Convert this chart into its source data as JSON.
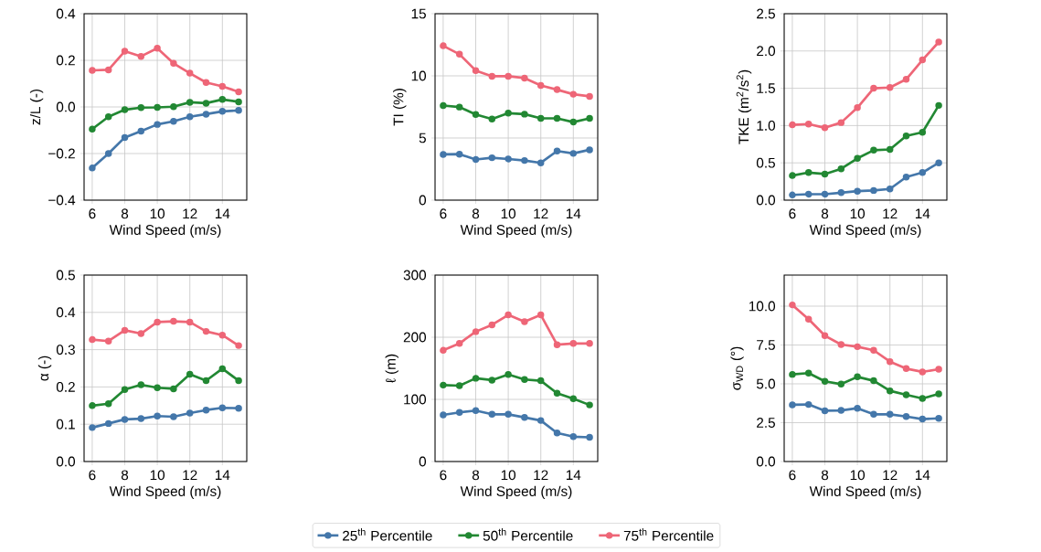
{
  "chart_data": [
    {
      "type": "line",
      "x": [
        6,
        7,
        8,
        9,
        10,
        11,
        12,
        13,
        14,
        15
      ],
      "xlabel": "Wind Speed (m/s)",
      "ylabel": "z/L (-)",
      "xlim": [
        5.5,
        15.5
      ],
      "xticks": [
        6,
        8,
        10,
        12,
        14
      ],
      "ylim": [
        -0.4,
        0.4
      ],
      "yticks": [
        {
          "value": -0.4,
          "label": "−0.4"
        },
        {
          "value": -0.2,
          "label": "−0.2"
        },
        {
          "value": 0,
          "label": "0.0"
        },
        0.2,
        0.4
      ],
      "grid": true,
      "marker": "circle",
      "series": [
        {
          "color": "#4477aa",
          "values": [
            -0.262,
            -0.2,
            -0.131,
            -0.104,
            -0.075,
            -0.062,
            -0.042,
            -0.031,
            -0.019,
            -0.015
          ]
        },
        {
          "color": "#228833",
          "values": [
            -0.095,
            -0.042,
            -0.012,
            -0.003,
            -0.002,
            0.001,
            0.02,
            0.016,
            0.032,
            0.022
          ]
        },
        {
          "color": "#ee6677",
          "values": [
            0.157,
            0.159,
            0.239,
            0.217,
            0.252,
            0.187,
            0.145,
            0.105,
            0.088,
            0.065
          ]
        }
      ]
    },
    {
      "type": "line",
      "x": [
        6,
        7,
        8,
        9,
        10,
        11,
        12,
        13,
        14,
        15
      ],
      "xlabel": "Wind Speed (m/s)",
      "ylabel": "TI (%)",
      "xlim": [
        5.5,
        15.5
      ],
      "xticks": [
        6,
        8,
        10,
        12,
        14
      ],
      "ylim": [
        0,
        15
      ],
      "yticks": [
        0,
        5,
        10,
        15
      ],
      "grid": true,
      "marker": "circle",
      "series": [
        {
          "color": "#4477aa",
          "values": [
            3.68,
            3.7,
            3.27,
            3.41,
            3.31,
            3.19,
            3.0,
            3.95,
            3.76,
            4.05
          ]
        },
        {
          "color": "#228833",
          "values": [
            7.61,
            7.49,
            6.9,
            6.53,
            7.0,
            6.92,
            6.58,
            6.58,
            6.28,
            6.58
          ]
        },
        {
          "color": "#ee6677",
          "values": [
            12.42,
            11.74,
            10.43,
            9.97,
            9.97,
            9.82,
            9.23,
            8.89,
            8.52,
            8.35
          ]
        }
      ]
    },
    {
      "type": "line",
      "x": [
        6,
        7,
        8,
        9,
        10,
        11,
        12,
        13,
        14,
        15
      ],
      "xlabel": "Wind Speed (m/s)",
      "ylabel": "TKE (m$^{2}$/s$^{2}$)",
      "xlim": [
        5.5,
        15.5
      ],
      "xticks": [
        6,
        8,
        10,
        12,
        14
      ],
      "ylim": [
        0,
        2.5
      ],
      "yticks": [
        {
          "value": 0,
          "label": "0.0"
        },
        0.5,
        {
          "value": 1,
          "label": "1.0"
        },
        1.5,
        {
          "value": 2,
          "label": "2.0"
        },
        2.5
      ],
      "grid": true,
      "marker": "circle",
      "series": [
        {
          "color": "#4477aa",
          "values": [
            0.07,
            0.08,
            0.08,
            0.1,
            0.12,
            0.13,
            0.15,
            0.31,
            0.37,
            0.5
          ]
        },
        {
          "color": "#228833",
          "values": [
            0.33,
            0.37,
            0.35,
            0.42,
            0.56,
            0.67,
            0.68,
            0.86,
            0.91,
            1.27
          ]
        },
        {
          "color": "#ee6677",
          "values": [
            1.01,
            1.02,
            0.97,
            1.04,
            1.24,
            1.5,
            1.51,
            1.62,
            1.88,
            2.12
          ]
        }
      ]
    },
    {
      "type": "line",
      "x": [
        6,
        7,
        8,
        9,
        10,
        11,
        12,
        13,
        14,
        15
      ],
      "xlabel": "Wind Speed (m/s)",
      "ylabel": "α (-)",
      "xlim": [
        5.5,
        15.5
      ],
      "xticks": [
        6,
        8,
        10,
        12,
        14
      ],
      "ylim": [
        0,
        0.5
      ],
      "yticks": [
        {
          "value": 0,
          "label": "0.0"
        },
        0.1,
        0.2,
        0.3,
        0.4,
        0.5
      ],
      "grid": true,
      "marker": "circle",
      "series": [
        {
          "color": "#4477aa",
          "values": [
            0.091,
            0.102,
            0.113,
            0.115,
            0.122,
            0.12,
            0.13,
            0.138,
            0.144,
            0.143
          ]
        },
        {
          "color": "#228833",
          "values": [
            0.15,
            0.155,
            0.193,
            0.206,
            0.198,
            0.195,
            0.234,
            0.217,
            0.249,
            0.217
          ]
        },
        {
          "color": "#ee6677",
          "values": [
            0.327,
            0.323,
            0.352,
            0.343,
            0.374,
            0.376,
            0.374,
            0.349,
            0.339,
            0.311
          ]
        }
      ]
    },
    {
      "type": "line",
      "x": [
        6,
        7,
        8,
        9,
        10,
        11,
        12,
        13,
        14,
        15
      ],
      "xlabel": "Wind Speed (m/s)",
      "ylabel": "ℓ (m)",
      "xlim": [
        5.5,
        15.5
      ],
      "xticks": [
        6,
        8,
        10,
        12,
        14
      ],
      "ylim": [
        0,
        300
      ],
      "yticks": [
        0,
        100,
        200,
        300
      ],
      "grid": true,
      "marker": "circle",
      "legend": "bottom",
      "series": [
        {
          "name": "25$^{th}$ Percentile",
          "color": "#4477aa",
          "values": [
            75,
            79,
            82,
            76,
            76,
            71,
            66,
            46,
            40,
            39
          ]
        },
        {
          "name": "50$^{th}$ Percentile",
          "color": "#228833",
          "values": [
            123,
            122,
            134,
            131,
            140,
            132,
            130,
            110,
            101,
            91
          ]
        },
        {
          "name": "75$^{th}$ Percentile",
          "color": "#ee6677",
          "values": [
            179,
            190,
            209,
            220,
            236,
            225,
            236,
            188,
            190,
            190
          ]
        }
      ]
    },
    {
      "type": "line",
      "x": [
        6,
        7,
        8,
        9,
        10,
        11,
        12,
        13,
        14,
        15
      ],
      "xlabel": "Wind Speed (m/s)",
      "ylabel": "σ$_{WD}$ (°)",
      "xlim": [
        5.5,
        15.5
      ],
      "xticks": [
        6,
        8,
        10,
        12,
        14
      ],
      "ylim": [
        0,
        12
      ],
      "yticks": [
        {
          "value": 0,
          "label": "0.0"
        },
        2.5,
        {
          "value": 5,
          "label": "5.0"
        },
        7.5,
        {
          "value": 10,
          "label": "10.0"
        }
      ],
      "grid": true,
      "marker": "circle",
      "series": [
        {
          "color": "#4477aa",
          "values": [
            3.65,
            3.67,
            3.27,
            3.29,
            3.43,
            3.04,
            3.04,
            2.9,
            2.73,
            2.78
          ]
        },
        {
          "color": "#228833",
          "values": [
            5.61,
            5.69,
            5.16,
            4.98,
            5.45,
            5.2,
            4.55,
            4.29,
            4.06,
            4.35
          ]
        },
        {
          "color": "#ee6677",
          "values": [
            10.08,
            9.16,
            8.1,
            7.53,
            7.39,
            7.16,
            6.43,
            5.98,
            5.77,
            5.94
          ]
        }
      ]
    }
  ]
}
